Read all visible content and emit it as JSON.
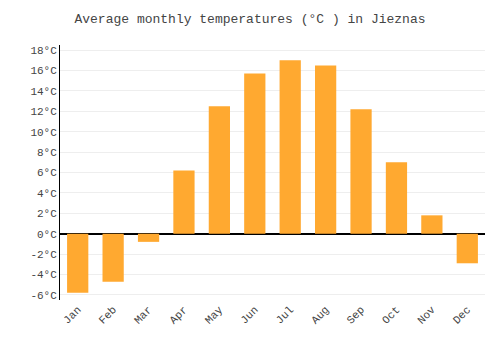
{
  "chart_data": {
    "type": "bar",
    "title": "Average monthly temperatures (°C ) in Jieznas",
    "categories": [
      "Jan",
      "Feb",
      "Mar",
      "Apr",
      "May",
      "Jun",
      "Jul",
      "Aug",
      "Sep",
      "Oct",
      "Nov",
      "Dec"
    ],
    "values": [
      -5.8,
      -4.7,
      -0.8,
      6.2,
      12.5,
      15.7,
      17.0,
      16.5,
      12.2,
      7.0,
      1.8,
      -2.9
    ],
    "color": "#FFA930",
    "ylim": [
      -6.5,
      18.5
    ],
    "yticks": [
      {
        "value": -6,
        "label": "-6°C"
      },
      {
        "value": -4,
        "label": "-4°C"
      },
      {
        "value": -2,
        "label": "-2°C"
      },
      {
        "value": 0,
        "label": "0°C"
      },
      {
        "value": 2,
        "label": "2°C"
      },
      {
        "value": 4,
        "label": "4°C"
      },
      {
        "value": 6,
        "label": "6°C"
      },
      {
        "value": 8,
        "label": "8°C"
      },
      {
        "value": 10,
        "label": "10°C"
      },
      {
        "value": 12,
        "label": "12°C"
      },
      {
        "value": 14,
        "label": "14°C"
      },
      {
        "value": 16,
        "label": "16°C"
      },
      {
        "value": 18,
        "label": "18°C"
      }
    ],
    "grid": true
  }
}
